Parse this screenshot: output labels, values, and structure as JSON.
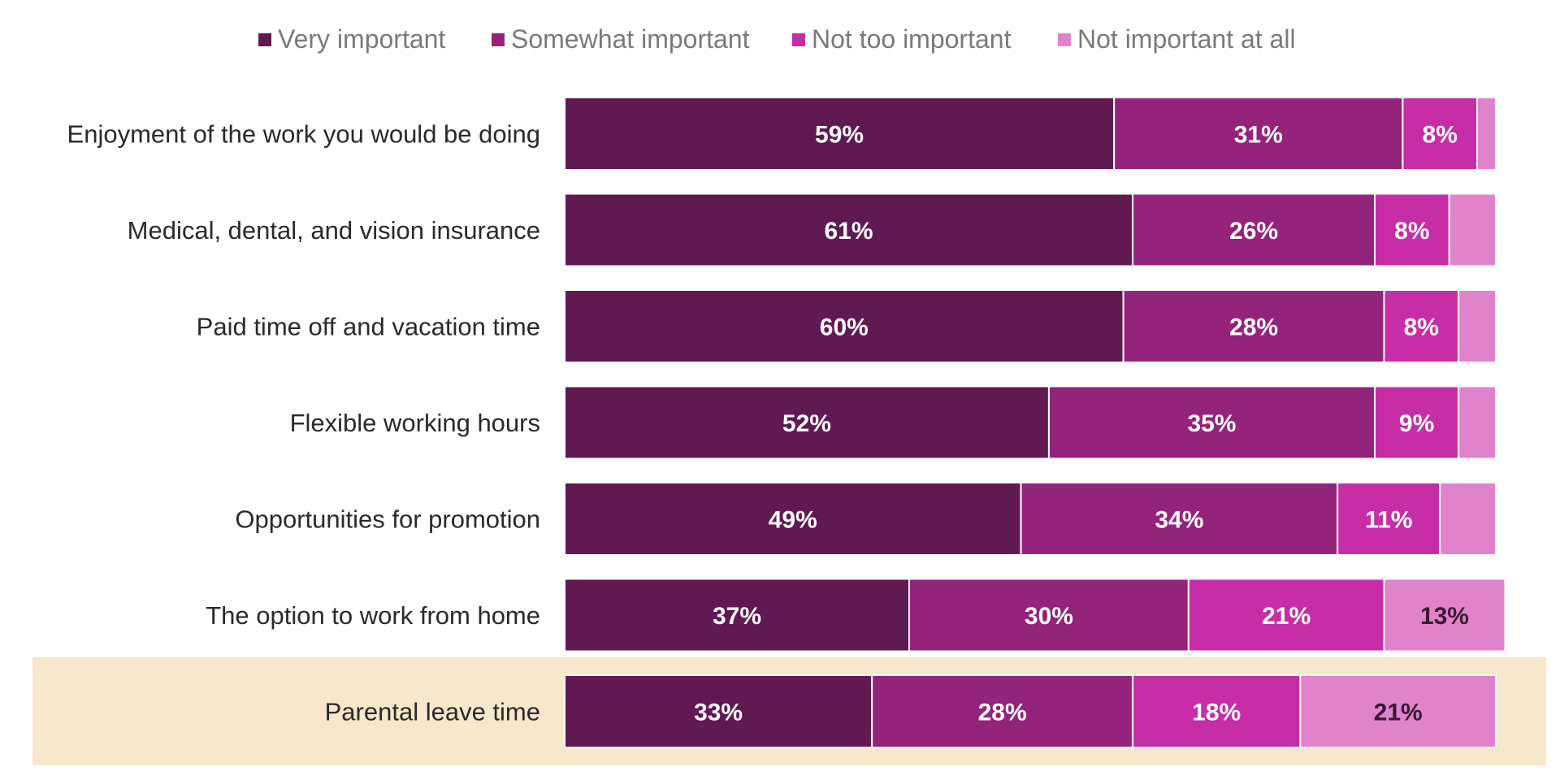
{
  "colors": {
    "very": "#611951",
    "somewhat": "#93237b",
    "not_too": "#c72da7",
    "not_at_all": "#e083cb",
    "highlight_band": "#f7e7cb",
    "label_light": "#ffffff",
    "label_dark": "#3a1733"
  },
  "chart_data": {
    "type": "bar",
    "orientation": "horizontal",
    "stacked": true,
    "title": "",
    "xlabel": "",
    "ylabel": "",
    "xlim": [
      0,
      100
    ],
    "unit": "%",
    "legend_position": "top-center",
    "grid": false,
    "highlighted_category": "Parental leave time",
    "categories": [
      "Enjoyment of the work you would be doing",
      "Medical, dental, and vision insurance",
      "Paid time off and vacation time",
      "Flexible working hours",
      "Opportunities for promotion",
      "The option to work from home",
      "Parental leave time"
    ],
    "series": [
      {
        "name": "Very important",
        "color_key": "very",
        "values": [
          59,
          61,
          60,
          52,
          49,
          37,
          33
        ]
      },
      {
        "name": "Somewhat important",
        "color_key": "somewhat",
        "values": [
          31,
          26,
          28,
          35,
          34,
          30,
          28
        ]
      },
      {
        "name": "Not too important",
        "color_key": "not_too",
        "values": [
          8,
          8,
          8,
          9,
          11,
          21,
          18
        ]
      },
      {
        "name": "Not important at all",
        "color_key": "not_at_all",
        "values": [
          2,
          5,
          4,
          4,
          6,
          13,
          21
        ]
      }
    ],
    "data_labels": [
      [
        "59%",
        "31%",
        "8%",
        ""
      ],
      [
        "61%",
        "26%",
        "8%",
        ""
      ],
      [
        "60%",
        "28%",
        "8%",
        ""
      ],
      [
        "52%",
        "35%",
        "9%",
        ""
      ],
      [
        "49%",
        "34%",
        "11%",
        ""
      ],
      [
        "37%",
        "30%",
        "21%",
        "13%"
      ],
      [
        "33%",
        "28%",
        "18%",
        "21%"
      ]
    ]
  }
}
